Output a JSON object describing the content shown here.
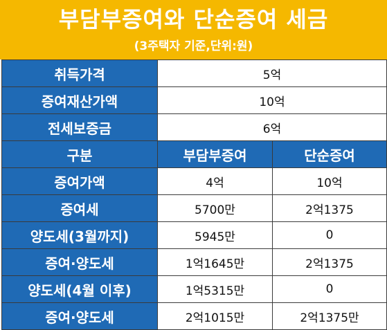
{
  "header": {
    "title": "부담부증여와 단순증여 세금",
    "subtitle": "(3주택자 기준,단위:원)"
  },
  "info_rows": [
    {
      "label": "취득가격",
      "value": "5억"
    },
    {
      "label": "증여재산가액",
      "value": "10억"
    },
    {
      "label": "전세보증금",
      "value": "6억"
    }
  ],
  "table": {
    "columns": [
      "구분",
      "부담부증여",
      "단순증여"
    ],
    "rows": [
      {
        "label": "증여가액",
        "burden": "4억",
        "simple": "10억"
      },
      {
        "label": "증여세",
        "burden": "5700만",
        "simple": "2억1375"
      },
      {
        "label": "양도세(3월까지)",
        "burden": "5945만",
        "simple": "0"
      },
      {
        "label": "증여·양도세",
        "burden": "1억1645만",
        "simple": "2억1375"
      },
      {
        "label": "양도세(4월 이후)",
        "burden": "1억5315만",
        "simple": "0"
      },
      {
        "label": "증여·양도세",
        "burden": "2억1015만",
        "simple": "2억1375만"
      }
    ]
  },
  "colors": {
    "header_bg": "#f5b800",
    "label_bg": "#1f6ab5",
    "label_text": "#ffffff",
    "border": "#3a3a3a"
  }
}
